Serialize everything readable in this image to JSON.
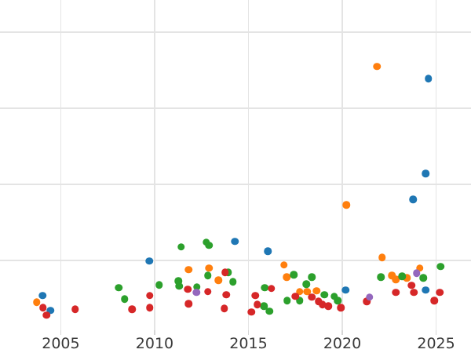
{
  "figure": {
    "background": "#ffffff",
    "grid_color": "#e4e4e4",
    "tick_color": "#d6d6d6",
    "tick_label_color": "#3a3a3a"
  },
  "chart_data": {
    "type": "scatter",
    "title": "",
    "xlabel": "",
    "ylabel": "",
    "grid": true,
    "legend": "none",
    "x_tick_labels": [
      "2005",
      "2010",
      "2015",
      "2020",
      "2025"
    ],
    "x_tick_values": [
      2005,
      2010,
      2015,
      2020,
      2025
    ],
    "x_range": [
      2001.76,
      2026.86
    ],
    "y_range": [
      0.082,
      4.423
    ],
    "y_gridline_values": [
      1,
      2,
      3,
      4
    ],
    "y_tick_labels": [],
    "marker_size_px": 9.5,
    "series": [
      {
        "name": "series-blue",
        "color": "#1f77b4",
        "points": [
          [
            2004.02,
            0.54
          ],
          [
            2004.44,
            0.34
          ],
          [
            2009.71,
            0.99
          ],
          [
            2014.27,
            1.25
          ],
          [
            2016.03,
            1.12
          ],
          [
            2020.17,
            0.61
          ],
          [
            2024.44,
            0.61
          ],
          [
            2023.77,
            1.8
          ],
          [
            2024.44,
            2.14
          ],
          [
            2024.6,
            3.39
          ]
        ]
      },
      {
        "name": "series-orange",
        "color": "#ff7f0e",
        "points": [
          [
            2003.72,
            0.45
          ],
          [
            2011.8,
            0.88
          ],
          [
            2012.89,
            0.9
          ],
          [
            2013.39,
            0.74
          ],
          [
            2016.9,
            0.94
          ],
          [
            2017.03,
            0.78
          ],
          [
            2017.74,
            0.59
          ],
          [
            2018.12,
            0.59
          ],
          [
            2018.62,
            0.6
          ],
          [
            2020.21,
            1.73
          ],
          [
            2021.84,
            3.55
          ],
          [
            2022.13,
            1.04
          ],
          [
            2022.64,
            0.8
          ],
          [
            2022.85,
            0.75
          ],
          [
            2023.43,
            0.77
          ],
          [
            2024.14,
            0.9
          ]
        ]
      },
      {
        "name": "series-green",
        "color": "#2ca02c",
        "points": [
          [
            2008.08,
            0.64
          ],
          [
            2008.41,
            0.49
          ],
          [
            2010.25,
            0.68
          ],
          [
            2011.26,
            0.73
          ],
          [
            2011.3,
            0.66
          ],
          [
            2011.42,
            1.18
          ],
          [
            2012.26,
            0.65
          ],
          [
            2012.76,
            1.24
          ],
          [
            2012.89,
            1.2
          ],
          [
            2012.84,
            0.8
          ],
          [
            2013.93,
            0.84
          ],
          [
            2014.18,
            0.72
          ],
          [
            2015.82,
            0.4
          ],
          [
            2015.86,
            0.64
          ],
          [
            2016.11,
            0.33
          ],
          [
            2017.07,
            0.47
          ],
          [
            2017.41,
            0.81
          ],
          [
            2017.74,
            0.47
          ],
          [
            2018.08,
            0.69
          ],
          [
            2018.37,
            0.78
          ],
          [
            2019.04,
            0.55
          ],
          [
            2019.58,
            0.53
          ],
          [
            2019.75,
            0.47
          ],
          [
            2022.05,
            0.78
          ],
          [
            2023.18,
            0.79
          ],
          [
            2024.31,
            0.77
          ],
          [
            2025.23,
            0.92
          ]
        ]
      },
      {
        "name": "series-red",
        "color": "#d62728",
        "points": [
          [
            2004.06,
            0.38
          ],
          [
            2004.23,
            0.28
          ],
          [
            2005.77,
            0.36
          ],
          [
            2008.79,
            0.36
          ],
          [
            2009.75,
            0.54
          ],
          [
            2009.75,
            0.38
          ],
          [
            2011.76,
            0.62
          ],
          [
            2011.8,
            0.43
          ],
          [
            2012.84,
            0.59
          ],
          [
            2013.72,
            0.37
          ],
          [
            2013.76,
            0.84
          ],
          [
            2013.81,
            0.55
          ],
          [
            2015.15,
            0.32
          ],
          [
            2015.36,
            0.54
          ],
          [
            2015.48,
            0.42
          ],
          [
            2016.23,
            0.63
          ],
          [
            2017.49,
            0.53
          ],
          [
            2018.37,
            0.52
          ],
          [
            2018.74,
            0.46
          ],
          [
            2018.95,
            0.42
          ],
          [
            2019.25,
            0.4
          ],
          [
            2019.92,
            0.38
          ],
          [
            2021.3,
            0.46
          ],
          [
            2022.85,
            0.58
          ],
          [
            2023.69,
            0.67
          ],
          [
            2023.81,
            0.58
          ],
          [
            2024.9,
            0.47
          ],
          [
            2025.19,
            0.58
          ]
        ]
      },
      {
        "name": "series-purple",
        "color": "#9467bd",
        "points": [
          [
            2012.22,
            0.58
          ],
          [
            2021.46,
            0.52
          ],
          [
            2023.97,
            0.83
          ]
        ]
      }
    ]
  }
}
